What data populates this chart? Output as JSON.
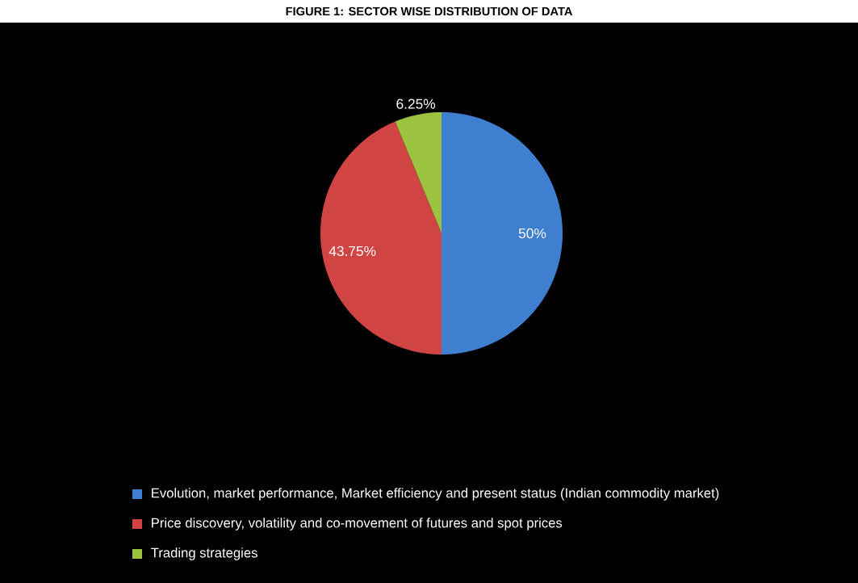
{
  "chart_data": {
    "type": "pie",
    "title": "FIGURE 1: SECTOR WISE DISTRIBUTION OF DATA",
    "categories": [
      "Evolution, market performance, Market efficiency  and present status (Indian commodity market)",
      "Price discovery, volatility and co-movement of futures and spot prices",
      "Trading strategies"
    ],
    "values": [
      50,
      43.75,
      6.25
    ],
    "value_labels": [
      "50%",
      "43.75%",
      "6.25%"
    ],
    "colors": [
      "#3f7fcf",
      "#d04543",
      "#9bc33f"
    ],
    "legend": "bottom"
  }
}
